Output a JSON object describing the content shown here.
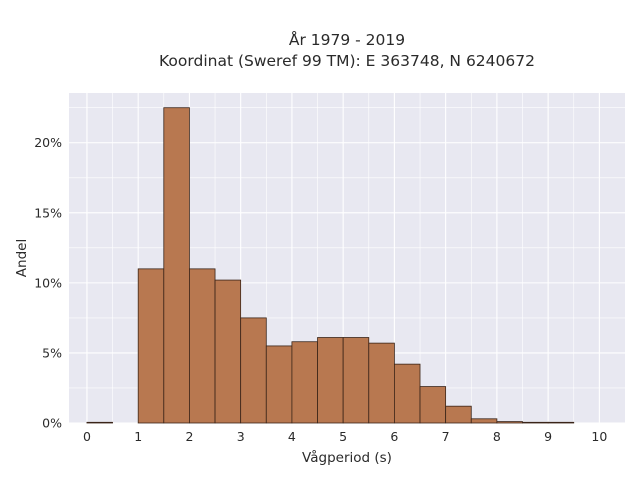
{
  "chart_data": {
    "type": "bar",
    "title_lines": [
      "År 1979 - 2019",
      "Koordinat (Sweref 99 TM): E 363748, N 6240672"
    ],
    "xlabel": "Vågperiod (s)",
    "ylabel": "Andel",
    "xlim": [
      -0.35,
      10.5
    ],
    "ylim": [
      0,
      0.2355
    ],
    "xticks": [
      0,
      1,
      2,
      3,
      4,
      5,
      6,
      7,
      8,
      9,
      10
    ],
    "xtick_labels": [
      "0",
      "1",
      "2",
      "3",
      "4",
      "5",
      "6",
      "7",
      "8",
      "9",
      "10"
    ],
    "yticks": [
      0,
      0.05,
      0.1,
      0.15,
      0.2
    ],
    "ytick_labels": [
      "0%",
      "5%",
      "10%",
      "15%",
      "20%"
    ],
    "bin_width": 0.5,
    "bin_starts": [
      0,
      0.5,
      1,
      1.5,
      2,
      2.5,
      3,
      3.5,
      4,
      4.5,
      5,
      5.5,
      6,
      6.5,
      7,
      7.5,
      8,
      8.5,
      9,
      9.5
    ],
    "values": [
      0.0005,
      0,
      0.11,
      0.225,
      0.11,
      0.102,
      0.075,
      0.055,
      0.058,
      0.061,
      0.061,
      0.057,
      0.042,
      0.026,
      0.012,
      0.003,
      0.001,
      0.0005,
      0.0005,
      0
    ],
    "grid": true,
    "colors": {
      "bar_fill": "#b87850",
      "bar_edge": "#3a2418",
      "plot_bg": "#e8e8f1",
      "grid": "#ffffff"
    }
  }
}
